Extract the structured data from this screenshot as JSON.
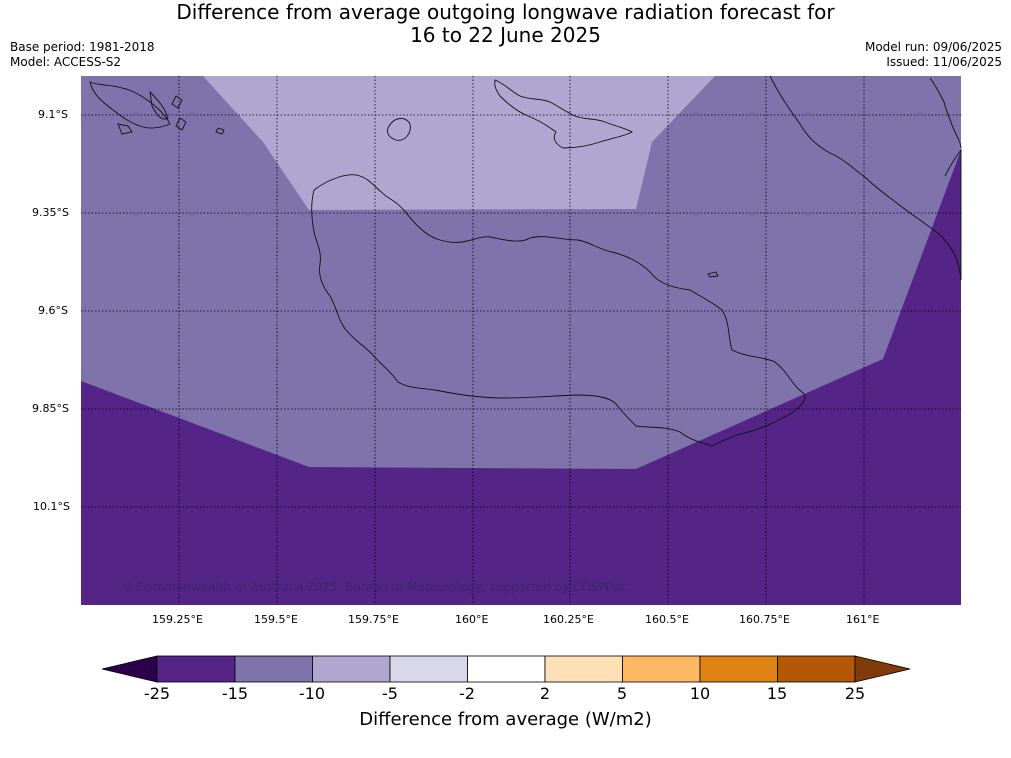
{
  "header": {
    "title_line1": "Difference from average outgoing longwave radiation forecast for",
    "title_line2": "16 to 22 June 2025",
    "base_period": "Base period: 1981-2018",
    "model": "Model: ACCESS-S2",
    "model_run": "Model run: 09/06/2025",
    "issued": "Issued: 11/06/2025"
  },
  "map": {
    "lat_labels": [
      "9.1°S",
      "9.35°S",
      "9.6°S",
      "9.85°S",
      "10.1°S"
    ],
    "lon_labels": [
      "159.25°E",
      "159.5°E",
      "159.75°E",
      "160°E",
      "160.25°E",
      "160.5°E",
      "160.75°E",
      "161°E"
    ],
    "credit": "© Commonwealth of Australia 2025, Bureau of Meteorology, supported by COSPPac",
    "zone_colors": {
      "light": "#b0a7d1",
      "medium": "#7f73ac",
      "dark": "#542586"
    }
  },
  "colorbar": {
    "title": "Difference from average (W/m2)",
    "ticks": [
      "-25",
      "-15",
      "-10",
      "-5",
      "-2",
      "2",
      "5",
      "10",
      "15",
      "25"
    ],
    "colors": [
      "#542586",
      "#7f73ac",
      "#b0a7d1",
      "#d9d8ea",
      "#ffffff",
      "#fee0b6",
      "#fdb863",
      "#e08214",
      "#b35806"
    ],
    "under_color": "#2d004b",
    "over_color": "#7f3b08"
  }
}
